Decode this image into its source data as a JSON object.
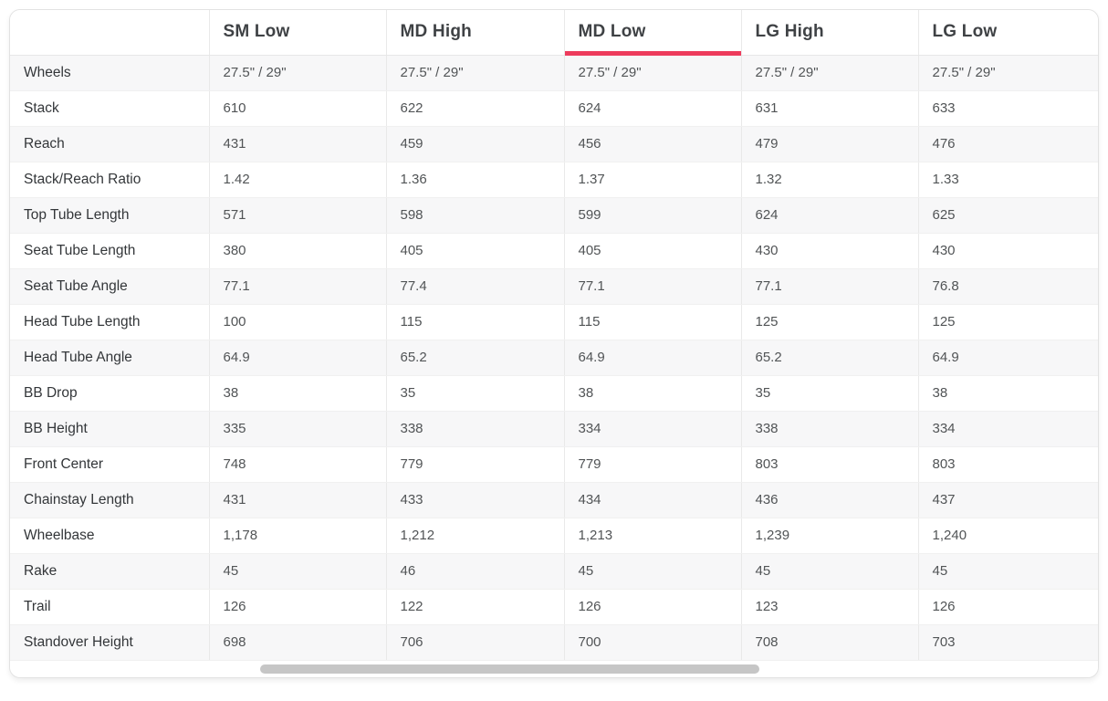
{
  "accent_color": "#ED3B5C",
  "table": {
    "active_column": "MD Low",
    "columns": [
      "SM Low",
      "MD High",
      "MD Low",
      "LG High",
      "LG Low"
    ],
    "rows": [
      {
        "label": "Wheels",
        "values": [
          "27.5\" / 29\"",
          "27.5\" / 29\"",
          "27.5\" / 29\"",
          "27.5\" / 29\"",
          "27.5\" / 29\""
        ]
      },
      {
        "label": "Stack",
        "values": [
          "610",
          "622",
          "624",
          "631",
          "633"
        ]
      },
      {
        "label": "Reach",
        "values": [
          "431",
          "459",
          "456",
          "479",
          "476"
        ]
      },
      {
        "label": "Stack/Reach Ratio",
        "values": [
          "1.42",
          "1.36",
          "1.37",
          "1.32",
          "1.33"
        ]
      },
      {
        "label": "Top Tube Length",
        "values": [
          "571",
          "598",
          "599",
          "624",
          "625"
        ]
      },
      {
        "label": "Seat Tube Length",
        "values": [
          "380",
          "405",
          "405",
          "430",
          "430"
        ]
      },
      {
        "label": "Seat Tube Angle",
        "values": [
          "77.1",
          "77.4",
          "77.1",
          "77.1",
          "76.8"
        ]
      },
      {
        "label": "Head Tube Length",
        "values": [
          "100",
          "115",
          "115",
          "125",
          "125"
        ]
      },
      {
        "label": "Head Tube Angle",
        "values": [
          "64.9",
          "65.2",
          "64.9",
          "65.2",
          "64.9"
        ]
      },
      {
        "label": "BB Drop",
        "values": [
          "38",
          "35",
          "38",
          "35",
          "38"
        ]
      },
      {
        "label": "BB Height",
        "values": [
          "335",
          "338",
          "334",
          "338",
          "334"
        ]
      },
      {
        "label": "Front Center",
        "values": [
          "748",
          "779",
          "779",
          "803",
          "803"
        ]
      },
      {
        "label": "Chainstay Length",
        "values": [
          "431",
          "433",
          "434",
          "436",
          "437"
        ]
      },
      {
        "label": "Wheelbase",
        "values": [
          "1,178",
          "1,212",
          "1,213",
          "1,239",
          "1,240"
        ]
      },
      {
        "label": "Rake",
        "values": [
          "45",
          "46",
          "45",
          "45",
          "45"
        ]
      },
      {
        "label": "Trail",
        "values": [
          "126",
          "122",
          "126",
          "123",
          "126"
        ]
      },
      {
        "label": "Standover Height",
        "values": [
          "698",
          "706",
          "700",
          "708",
          "703"
        ]
      }
    ]
  }
}
